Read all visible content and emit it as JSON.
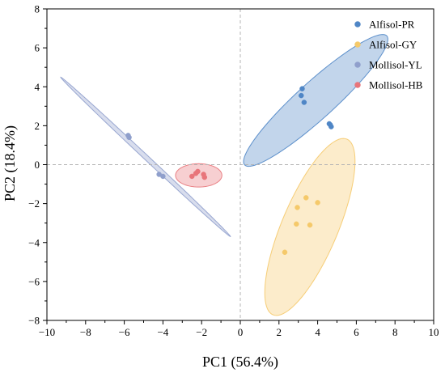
{
  "chart_data": {
    "type": "scatter",
    "xlabel": "PC1 (56.4%)",
    "ylabel": "PC2 (18.4%)",
    "xlim": [
      -10,
      10
    ],
    "ylim": [
      -8,
      8
    ],
    "xticks": [
      -10,
      -8,
      -6,
      -4,
      -2,
      0,
      2,
      4,
      6,
      8,
      10
    ],
    "yticks": [
      -8,
      -6,
      -4,
      -2,
      0,
      2,
      4,
      6,
      8
    ],
    "reference_lines": {
      "x": 0,
      "y": 0,
      "style": "dashed"
    },
    "legend_placement": "top-right",
    "series": [
      {
        "name": "Alfisol-PR",
        "color": "#4f86c6",
        "points": [
          [
            3.2,
            3.9
          ],
          [
            3.15,
            3.55
          ],
          [
            3.3,
            3.2
          ],
          [
            4.6,
            2.1
          ],
          [
            4.7,
            1.95
          ],
          [
            4.65,
            2.05
          ]
        ],
        "ellipse": {
          "cx": 3.9,
          "cy": 3.3,
          "rx": 4.95,
          "ry": 0.95,
          "angle_deg": 42
        }
      },
      {
        "name": "Alfisol-GY",
        "color": "#f5c96a",
        "points": [
          [
            3.4,
            -1.7
          ],
          [
            4.0,
            -1.95
          ],
          [
            2.95,
            -2.2
          ],
          [
            2.9,
            -3.05
          ],
          [
            3.6,
            -3.1
          ],
          [
            2.3,
            -4.5
          ]
        ],
        "ellipse": {
          "cx": 3.6,
          "cy": -3.2,
          "rx": 4.9,
          "ry": 1.45,
          "angle_deg": 67
        }
      },
      {
        "name": "Mollisol-YL",
        "color": "#8f9fcc",
        "points": [
          [
            -5.8,
            1.5
          ],
          [
            -5.75,
            1.4
          ],
          [
            -4.2,
            -0.5
          ],
          [
            -4.0,
            -0.6
          ]
        ],
        "ellipse": {
          "cx": -4.9,
          "cy": 0.4,
          "rx": 6.0,
          "ry": 0.12,
          "angle_deg": -43
        }
      },
      {
        "name": "Mollisol-HB",
        "color": "#e8757a",
        "points": [
          [
            -2.2,
            -0.35
          ],
          [
            -2.5,
            -0.6
          ],
          [
            -2.3,
            -0.45
          ],
          [
            -1.9,
            -0.5
          ],
          [
            -1.85,
            -0.65
          ]
        ],
        "ellipse": {
          "cx": -2.15,
          "cy": -0.55,
          "rx": 1.2,
          "ry": 0.6,
          "angle_deg": 0
        }
      }
    ]
  }
}
